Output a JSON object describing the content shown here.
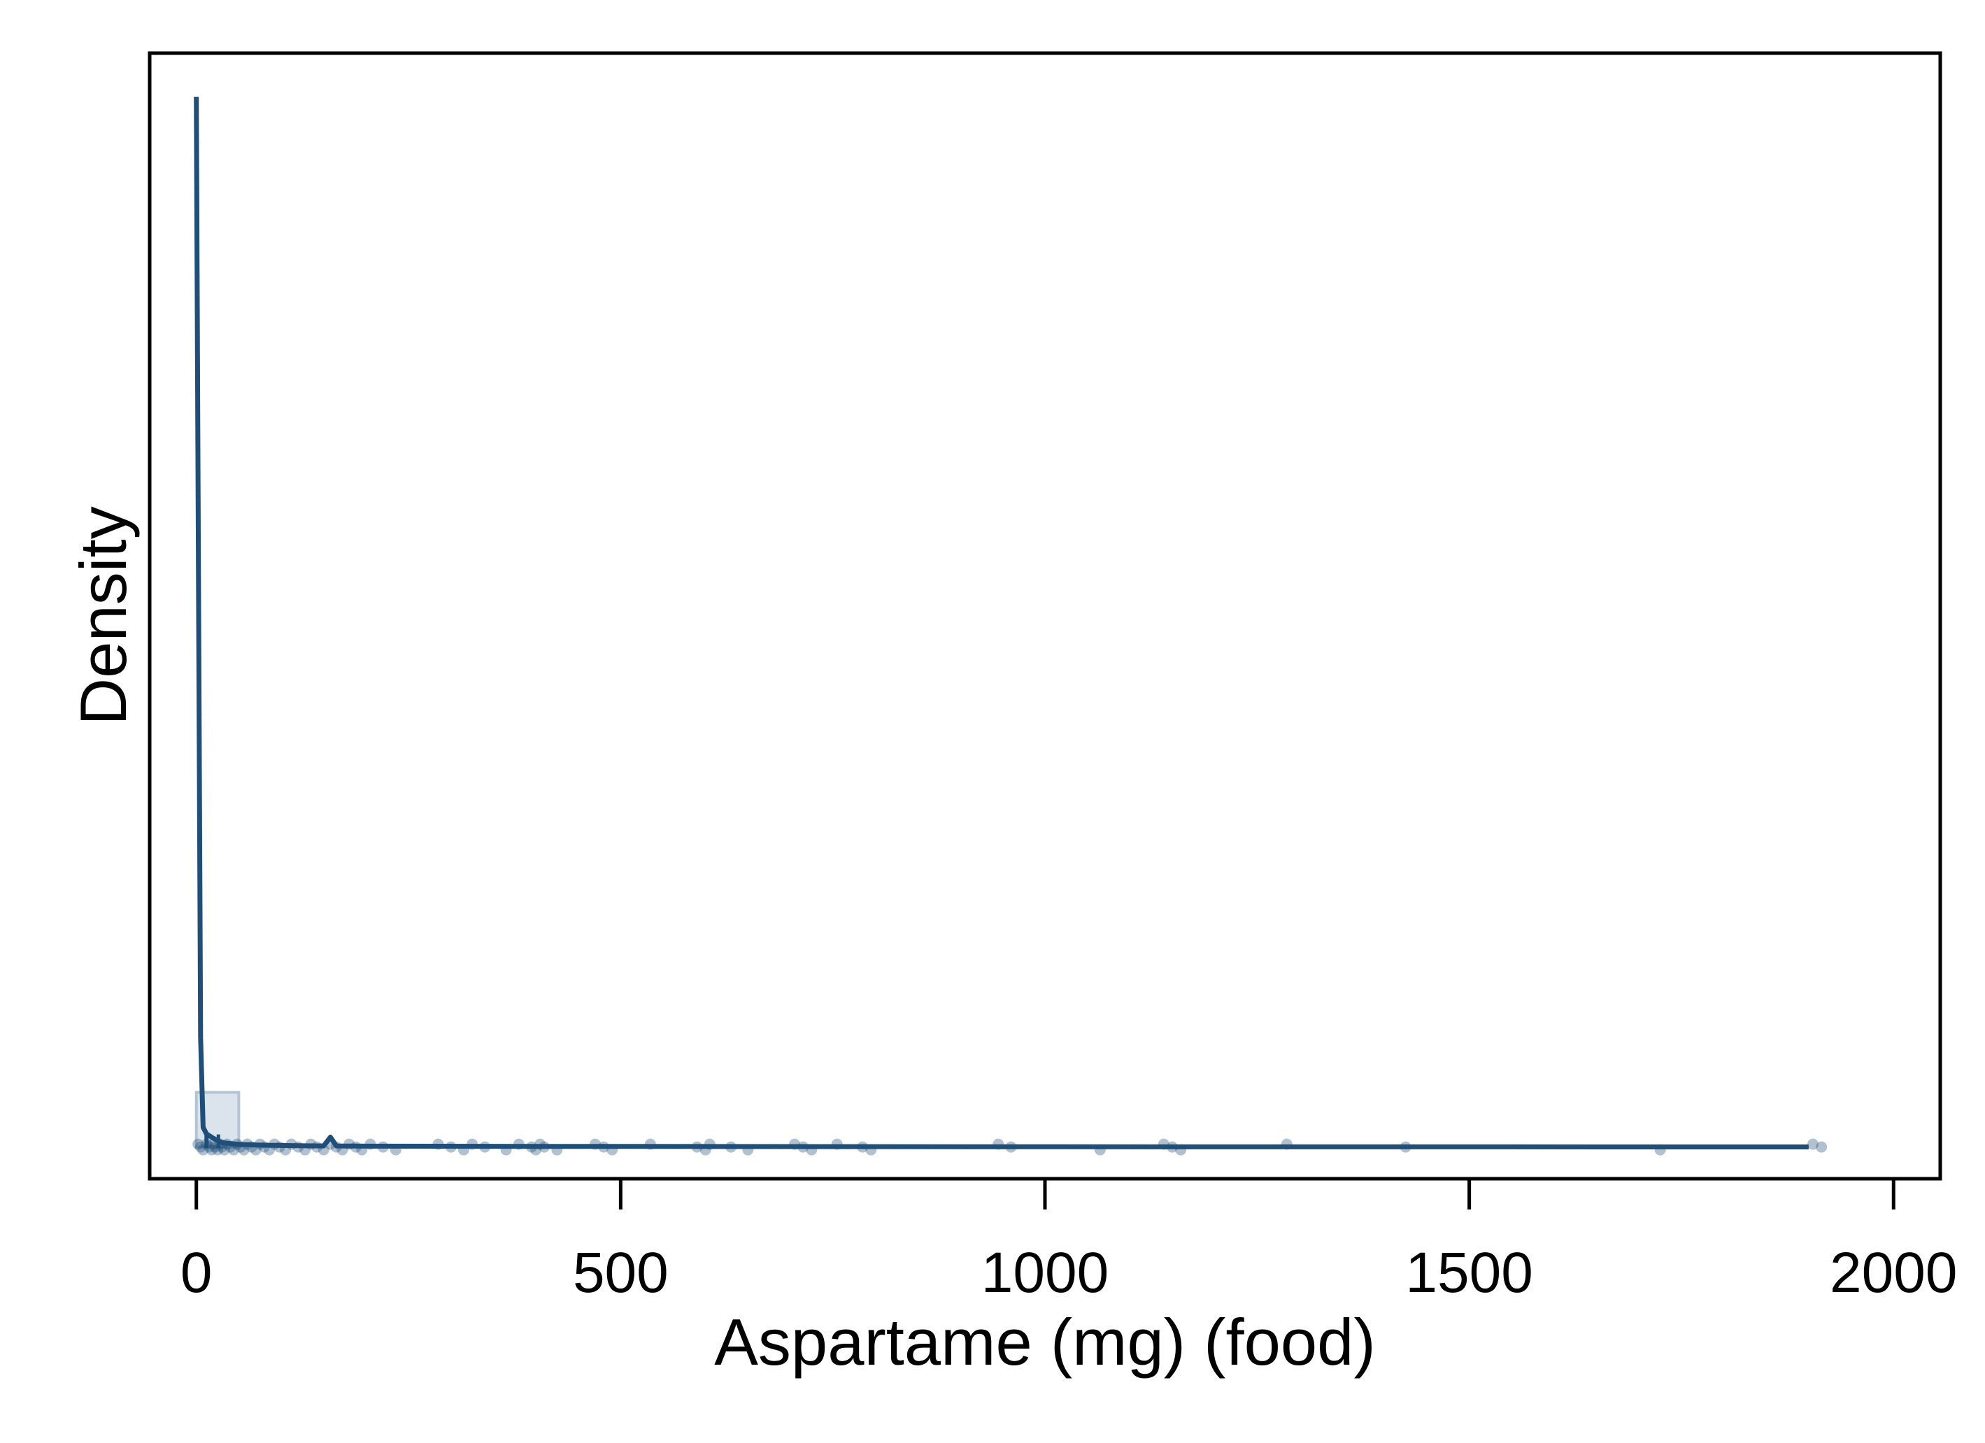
{
  "chart_data": {
    "type": "area",
    "title": "",
    "xlabel": "Aspartame (mg) (food)",
    "ylabel": "Density",
    "xlim": [
      -55,
      2055
    ],
    "ylim": [
      -0.0145,
      0.5
    ],
    "x_ticks": [
      0,
      500,
      1000,
      1500,
      2000
    ],
    "x_tick_labels": [
      "0",
      "500",
      "1000",
      "1500",
      "2000"
    ],
    "y_ticks_shown": false,
    "grid": false,
    "legend": "none",
    "colors": {
      "line": "#1f4e79",
      "fill": "#dbe3ec",
      "fill_border": "#b5c4d4",
      "points": "#1f4e79"
    },
    "histogram_bins": [
      {
        "x0": 0,
        "x1": 50,
        "density": 0.025
      }
    ],
    "density_curve": {
      "x": [
        0,
        2,
        5,
        8,
        12,
        20,
        30,
        50,
        80,
        120,
        150,
        158,
        165,
        200,
        400,
        700,
        1000,
        1500,
        1900
      ],
      "y": [
        0.48,
        0.3,
        0.05,
        0.009,
        0.006,
        0.004,
        0.002,
        0.0012,
        0.0008,
        0.0006,
        0.0005,
        0.0045,
        0.0005,
        0.0004,
        0.0003,
        0.0002,
        0.0001,
        7e-05,
        5e-05
      ]
    },
    "mean_marker_x": 12,
    "mean_marker_x2": 26,
    "rug_values": [
      2,
      5,
      8,
      12,
      15,
      18,
      20,
      22,
      25,
      28,
      30,
      33,
      36,
      40,
      44,
      48,
      52,
      56,
      60,
      65,
      70,
      75,
      80,
      86,
      92,
      98,
      105,
      112,
      120,
      128,
      135,
      142,
      150,
      158,
      165,
      172,
      180,
      188,
      195,
      205,
      220,
      235,
      285,
      300,
      315,
      325,
      340,
      365,
      380,
      395,
      400,
      405,
      410,
      425,
      470,
      480,
      490,
      535,
      590,
      600,
      605,
      630,
      650,
      705,
      715,
      725,
      755,
      785,
      795,
      945,
      960,
      1065,
      1140,
      1150,
      1160,
      1285,
      1425,
      1725,
      1905,
      1915
    ]
  }
}
